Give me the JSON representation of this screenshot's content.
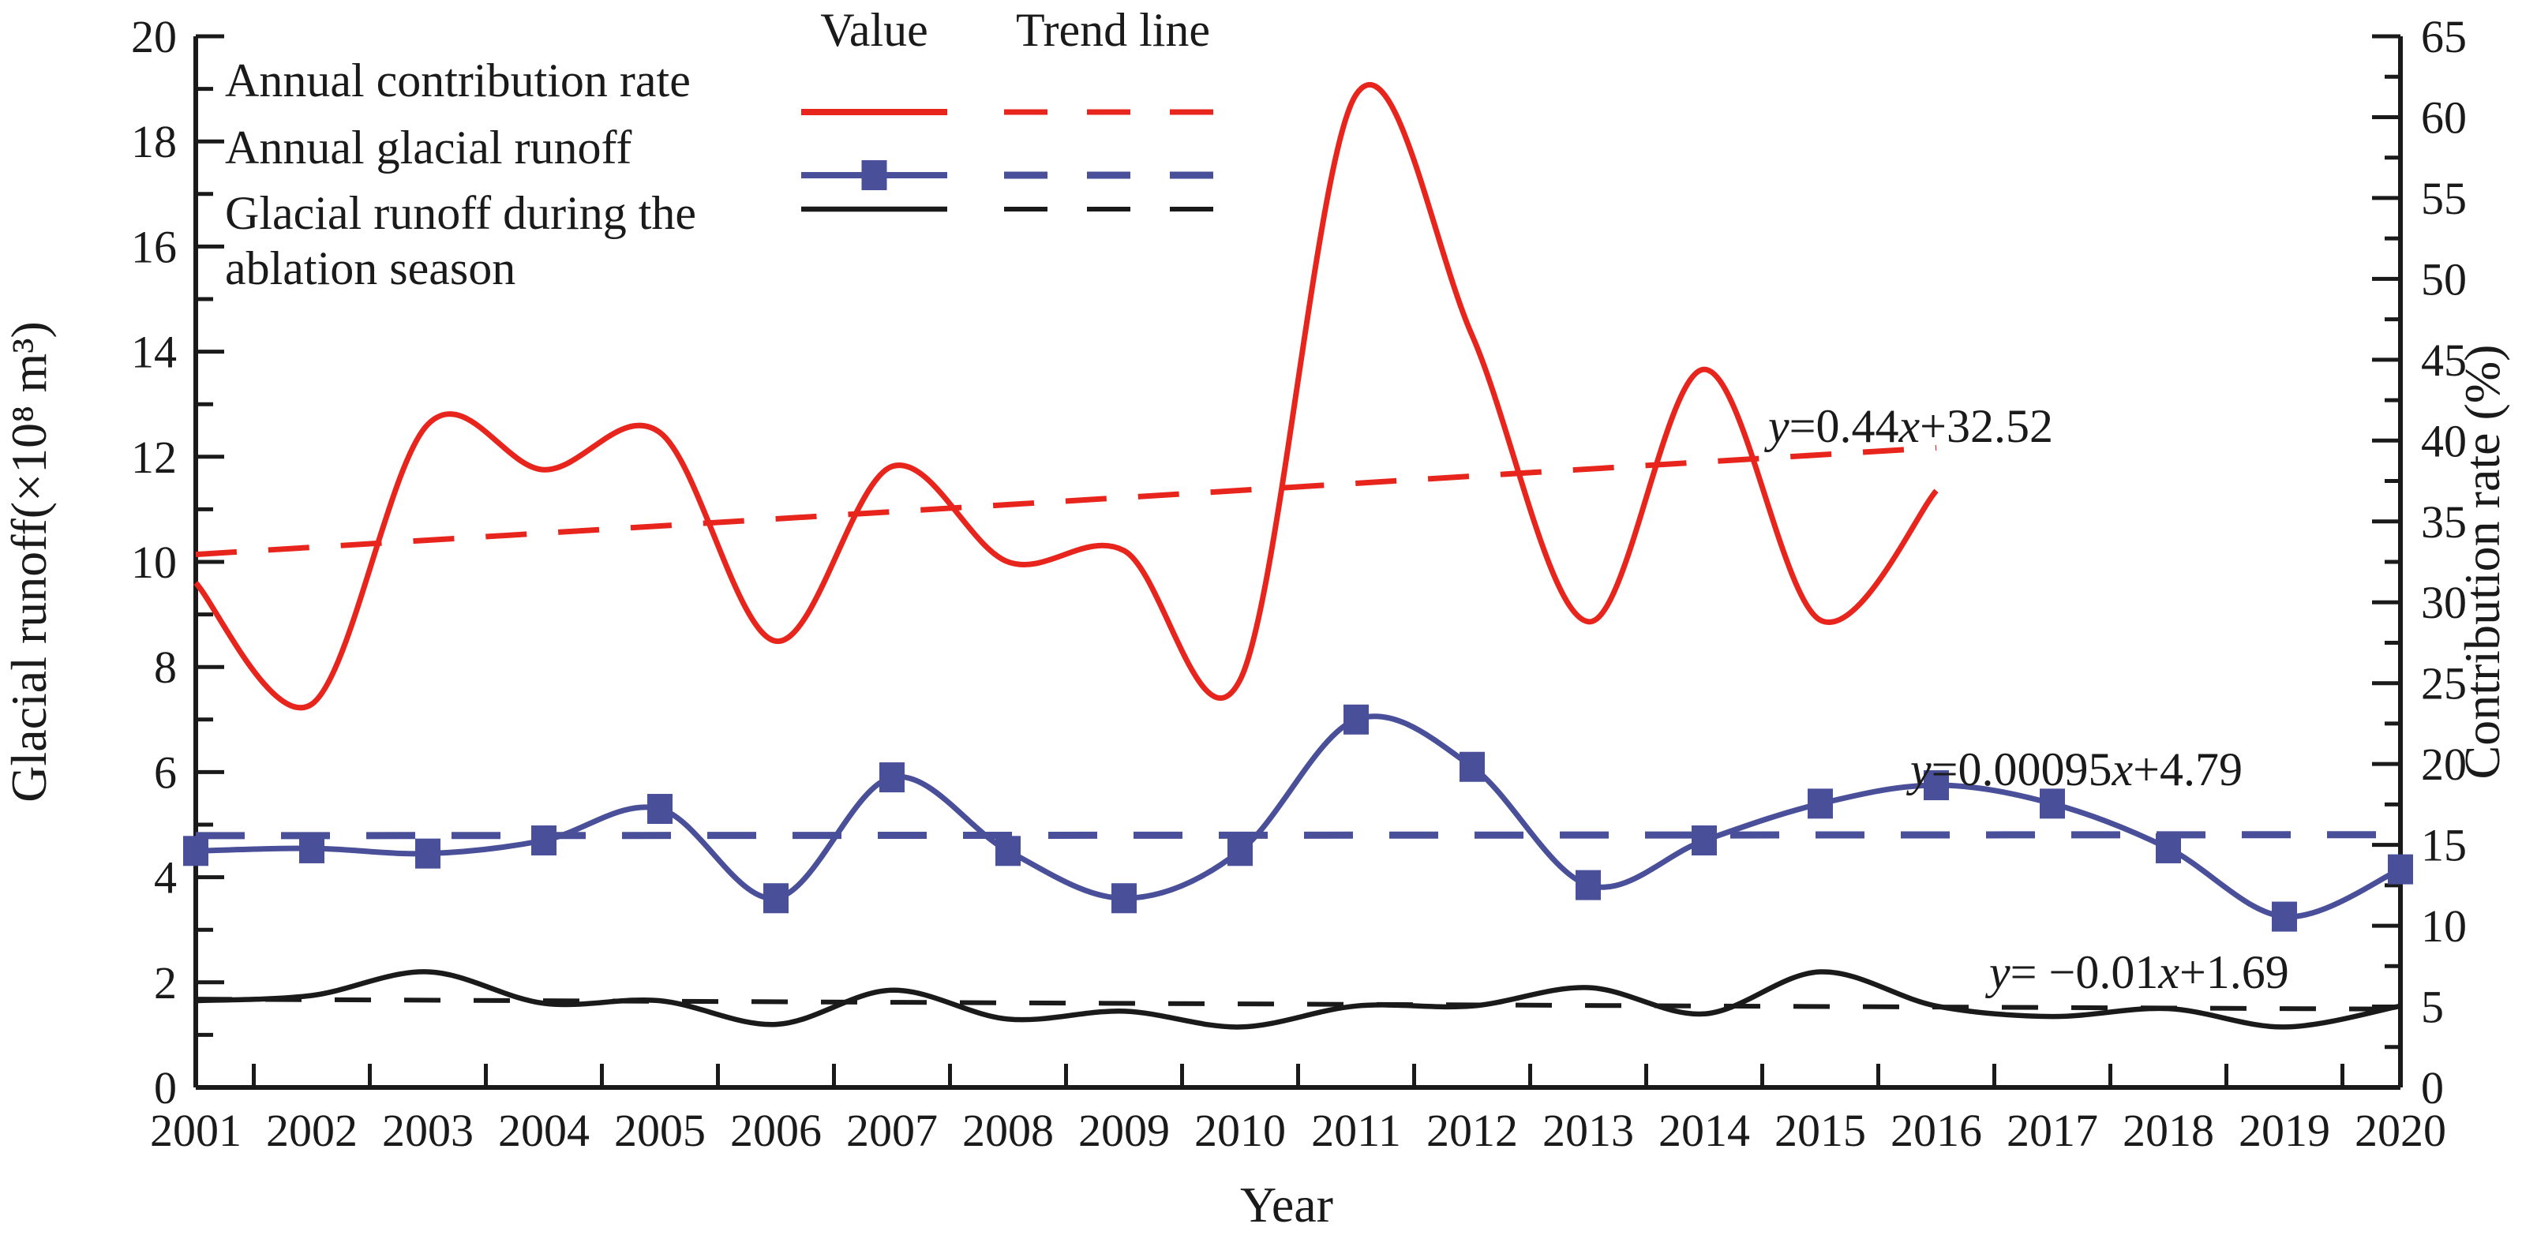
{
  "chart_data": {
    "type": "line",
    "xlabel": "Year",
    "ylabel_left": "Glacial runoff(×10⁸ m³)",
    "ylabel_right": "Contribution rate (%)",
    "x_years": [
      2001,
      2002,
      2003,
      2004,
      2005,
      2006,
      2007,
      2008,
      2009,
      2010,
      2011,
      2012,
      2013,
      2014,
      2015,
      2016,
      2017,
      2018,
      2019,
      2020
    ],
    "x_tick_labels": [
      "2001",
      "2002",
      "2003",
      "2004",
      "2005",
      "2006",
      "2007",
      "2008",
      "2009",
      "2010",
      "2011",
      "2012",
      "2013",
      "2014",
      "2015",
      "2016",
      "2017",
      "2018",
      "2019",
      "2020"
    ],
    "left_axis": {
      "min": 0,
      "max": 20,
      "major_step": 2,
      "minor_step": 1,
      "tick_labels": [
        "0",
        "2",
        "4",
        "6",
        "8",
        "10",
        "12",
        "14",
        "16",
        "18",
        "20"
      ]
    },
    "right_axis": {
      "min": 0,
      "max": 65,
      "major_step": 5,
      "minor_step": 2.5,
      "tick_labels": [
        "0",
        "5",
        "10",
        "15",
        "20",
        "25",
        "30",
        "35",
        "40",
        "45",
        "50",
        "55",
        "60",
        "65"
      ]
    },
    "colors": {
      "red": "#e8251d",
      "blue": "#4a4f99",
      "black": "#1a1a1a"
    },
    "series": [
      {
        "id": "contribution",
        "name": "Annual contribution rate",
        "axis": "right",
        "color": "#e8251d",
        "style": "solid",
        "marker": "none",
        "years": [
          2001,
          2002,
          2003,
          2004,
          2005,
          2006,
          2007,
          2008,
          2009,
          2010,
          2011,
          2012,
          2013,
          2014,
          2015,
          2016
        ],
        "values": [
          31.2,
          23.7,
          41.0,
          38.2,
          40.5,
          27.6,
          38.4,
          32.5,
          33.2,
          25.2,
          61.4,
          46.5,
          28.8,
          44.4,
          28.9,
          36.9
        ]
      },
      {
        "id": "annual_runoff",
        "name": "Annual glacial runoff",
        "axis": "left",
        "color": "#4a4f99",
        "style": "solid",
        "marker": "square",
        "years": [
          2001,
          2002,
          2003,
          2004,
          2005,
          2006,
          2007,
          2008,
          2009,
          2010,
          2011,
          2012,
          2013,
          2014,
          2015,
          2016,
          2017,
          2018,
          2019,
          2020
        ],
        "values": [
          4.5,
          4.55,
          4.45,
          4.7,
          5.3,
          3.6,
          5.9,
          4.5,
          3.6,
          4.5,
          7.0,
          6.1,
          3.85,
          4.7,
          5.4,
          5.75,
          5.4,
          4.55,
          3.25,
          4.15
        ]
      },
      {
        "id": "ablation_runoff",
        "name": "Glacial runoff during the ablation season",
        "axis": "left",
        "color": "#1a1a1a",
        "style": "solid",
        "marker": "none",
        "years": [
          2001,
          2002,
          2003,
          2004,
          2005,
          2006,
          2007,
          2008,
          2009,
          2010,
          2011,
          2012,
          2013,
          2014,
          2015,
          2016,
          2017,
          2018,
          2019,
          2020
        ],
        "values": [
          1.65,
          1.75,
          2.2,
          1.6,
          1.65,
          1.2,
          1.85,
          1.3,
          1.45,
          1.15,
          1.55,
          1.55,
          1.9,
          1.4,
          2.2,
          1.55,
          1.35,
          1.5,
          1.15,
          1.55
        ]
      }
    ],
    "trend_lines": [
      {
        "series": "contribution",
        "equation": "y=0.44x+32.52",
        "slope": 0.44,
        "intercept": 32.52,
        "axis": "right",
        "span_years": [
          2001,
          2016
        ],
        "color": "#e8251d",
        "eq_x": 2240,
        "eq_y": 560
      },
      {
        "series": "annual_runoff",
        "equation": "y=0.00095x+4.79",
        "slope": 0.00095,
        "intercept": 4.79,
        "axis": "left",
        "span_years": [
          2001,
          2020
        ],
        "color": "#4a4f99",
        "eq_x": 2420,
        "eq_y": 995
      },
      {
        "series": "ablation_runoff",
        "equation": "y= −0.01x+1.69",
        "slope": -0.01,
        "intercept": 1.69,
        "axis": "left",
        "span_years": [
          2001,
          2020
        ],
        "color": "#1a1a1a",
        "eq_x": 2520,
        "eq_y": 1252
      }
    ],
    "legend": {
      "headers": [
        "Value",
        "Trend line"
      ],
      "items": [
        {
          "label_lines": [
            "Annual contribution rate"
          ],
          "series": "contribution"
        },
        {
          "label_lines": [
            "Annual glacial runoff"
          ],
          "series": "annual_runoff"
        },
        {
          "label_lines": [
            "Glacial runoff during the",
            "ablation season"
          ],
          "series": "ablation_runoff"
        }
      ]
    },
    "legend_position": "top-left-inside",
    "grid": false
  }
}
